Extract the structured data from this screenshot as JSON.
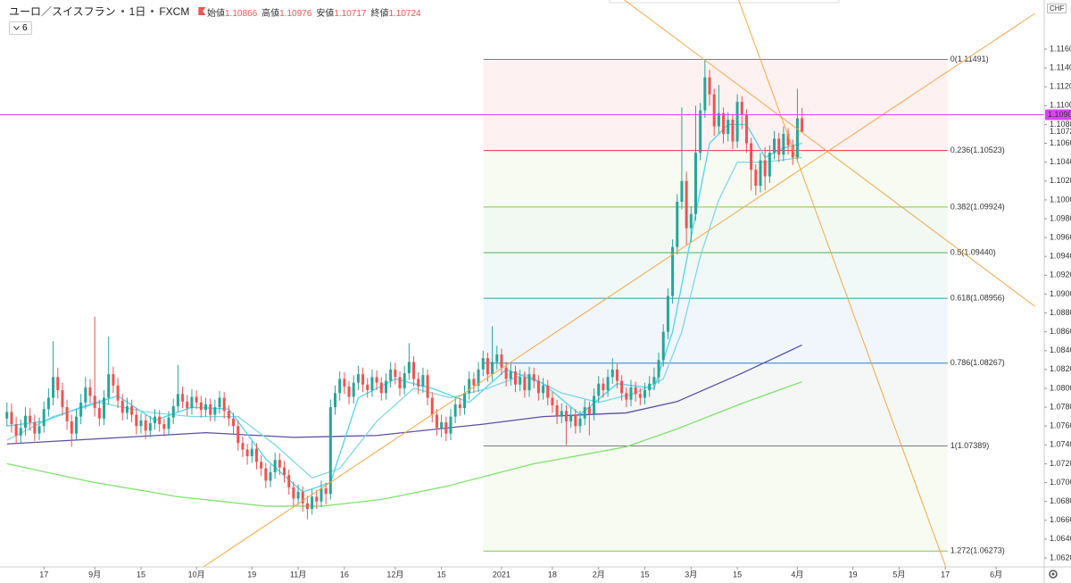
{
  "chart_data": {
    "type": "candlestick",
    "symbol": "ユーロ／スイスフラン",
    "interval": "1日",
    "source": "FXCM",
    "ohlc_labels": [
      "始値",
      "高値",
      "安値",
      "終値"
    ],
    "indicator_count": 6,
    "currency": "CHF",
    "up_color": "#26a69a",
    "down_color": "#ef5350",
    "xlim": [
      -1.5,
      224.4
    ],
    "ylim": [
      1.06105,
      1.12121
    ],
    "xticks": [
      {
        "value": 8,
        "label": "17"
      },
      {
        "value": 19,
        "label": "9月"
      },
      {
        "value": 29,
        "label": "15"
      },
      {
        "value": 41,
        "label": "10月"
      },
      {
        "value": 53,
        "label": "19"
      },
      {
        "value": 63,
        "label": "11月"
      },
      {
        "value": 73,
        "label": "16"
      },
      {
        "value": 84,
        "label": "12月"
      },
      {
        "value": 94,
        "label": "15"
      },
      {
        "value": 107,
        "label": "2021"
      },
      {
        "value": 118,
        "label": "18"
      },
      {
        "value": 128,
        "label": "2月"
      },
      {
        "value": 138,
        "label": "15"
      },
      {
        "value": 148,
        "label": "3月"
      },
      {
        "value": 158,
        "label": "15"
      },
      {
        "value": 171,
        "label": "4月"
      },
      {
        "value": 183,
        "label": "19"
      },
      {
        "value": 193,
        "label": "5月"
      },
      {
        "value": 203,
        "label": "17"
      },
      {
        "value": 214,
        "label": "6月"
      }
    ],
    "yticks": [
      {
        "value": 1.062,
        "label": "1.06200"
      },
      {
        "value": 1.064,
        "label": "1.06400"
      },
      {
        "value": 1.066,
        "label": "1.06600"
      },
      {
        "value": 1.068,
        "label": "1.06800"
      },
      {
        "value": 1.07,
        "label": "1.07000"
      },
      {
        "value": 1.072,
        "label": "1.07200"
      },
      {
        "value": 1.074,
        "label": "1.07400"
      },
      {
        "value": 1.076,
        "label": "1.07600"
      },
      {
        "value": 1.078,
        "label": "1.07800"
      },
      {
        "value": 1.08,
        "label": "1.08000"
      },
      {
        "value": 1.082,
        "label": "1.08200"
      },
      {
        "value": 1.084,
        "label": "1.08400"
      },
      {
        "value": 1.086,
        "label": "1.08600"
      },
      {
        "value": 1.088,
        "label": "1.08800"
      },
      {
        "value": 1.09,
        "label": "1.09000"
      },
      {
        "value": 1.092,
        "label": "1.09200"
      },
      {
        "value": 1.094,
        "label": "1.09400"
      },
      {
        "value": 1.096,
        "label": "1.09600"
      },
      {
        "value": 1.098,
        "label": "1.09800"
      },
      {
        "value": 1.1,
        "label": "1.10000"
      },
      {
        "value": 1.102,
        "label": "1.10200"
      },
      {
        "value": 1.104,
        "label": "1.10400"
      },
      {
        "value": 1.106,
        "label": "1.10600"
      },
      {
        "value": 1.108,
        "label": "1.10800"
      },
      {
        "value": 1.11,
        "label": "1.11000"
      },
      {
        "value": 1.112,
        "label": "1.11200"
      },
      {
        "value": 1.114,
        "label": "1.11400"
      },
      {
        "value": 1.116,
        "label": "1.11600"
      }
    ],
    "open": [
      1.0768,
      1.0775,
      1.0762,
      1.075,
      1.0758,
      1.0771,
      1.0764,
      1.0752,
      1.076,
      1.0778,
      1.079,
      1.0812,
      1.0798,
      1.078,
      1.0765,
      1.0752,
      1.077,
      1.0785,
      1.0801,
      1.0792,
      1.0779,
      1.0768,
      1.079,
      1.0815,
      1.0803,
      1.0787,
      1.0774,
      1.0781,
      1.0772,
      1.076,
      1.0766,
      1.0755,
      1.0763,
      1.077,
      1.0762,
      1.0757,
      1.0769,
      1.0781,
      1.0794,
      1.0786,
      1.0779,
      1.0791,
      1.0785,
      1.0777,
      1.0783,
      1.0772,
      1.078,
      1.079,
      1.0776,
      1.0768,
      1.076,
      1.0742,
      1.0735,
      1.0728,
      1.0736,
      1.0722,
      1.0715,
      1.0702,
      1.0711,
      1.0724,
      1.0716,
      1.0708,
      1.0695,
      1.0683,
      1.069,
      1.0678,
      1.0672,
      1.0685,
      1.068,
      1.0694,
      1.0688,
      1.078,
      1.0795,
      1.081,
      1.0802,
      1.0791,
      1.0806,
      1.0815,
      1.0804,
      1.0798,
      1.0812,
      1.0806,
      1.0795,
      1.0808,
      1.082,
      1.0812,
      1.08,
      1.0816,
      1.0828,
      1.081,
      1.0802,
      1.0814,
      1.079,
      1.0772,
      1.0758,
      1.0764,
      1.0752,
      1.077,
      1.0783,
      1.0779,
      1.0795,
      1.081,
      1.0803,
      1.082,
      1.0832,
      1.0815,
      1.0828,
      1.0836,
      1.0822,
      1.081,
      1.0818,
      1.0804,
      1.0812,
      1.0798,
      1.0815,
      1.0808,
      1.0795,
      1.0803,
      1.079,
      1.0782,
      1.077,
      1.0776,
      1.0765,
      1.0772,
      1.076,
      1.0768,
      1.078,
      1.0773,
      1.0792,
      1.0805,
      1.0798,
      1.0812,
      1.082,
      1.0808,
      1.0795,
      1.0788,
      1.0801,
      1.0794,
      1.079,
      1.0798,
      1.0805,
      1.0812,
      1.083,
      1.086,
      1.0898,
      1.095,
      1.0998,
      1.102,
      1.097,
      1.0985,
      1.105,
      1.1095,
      1.113,
      1.1112,
      1.1078,
      1.1092,
      1.107,
      1.1085,
      1.1062,
      1.1104,
      1.109,
      1.106,
      1.1032,
      1.1015,
      1.1042,
      1.1025,
      1.105,
      1.1065,
      1.1048,
      1.107,
      1.1058,
      1.1045,
      1.10866
    ],
    "high": [
      1.0785,
      1.0784,
      1.077,
      1.0767,
      1.078,
      1.0779,
      1.0772,
      1.0769,
      1.0786,
      1.08,
      1.085,
      1.0822,
      1.0806,
      1.0788,
      1.0772,
      1.0778,
      1.0794,
      1.0812,
      1.081,
      1.0876,
      1.0788,
      1.0798,
      1.0855,
      1.0823,
      1.0811,
      1.0794,
      1.079,
      1.0788,
      1.0779,
      1.0774,
      1.0772,
      1.0771,
      1.0778,
      1.0777,
      1.0768,
      1.0776,
      1.0789,
      1.0825,
      1.0802,
      1.0793,
      1.0799,
      1.0798,
      1.0792,
      1.079,
      1.0789,
      1.0788,
      1.0797,
      1.0796,
      1.0782,
      1.0774,
      1.0766,
      1.0749,
      1.0741,
      1.0744,
      1.0742,
      1.0729,
      1.0721,
      1.0719,
      1.0732,
      1.0731,
      1.0723,
      1.0714,
      1.0701,
      1.0698,
      1.0696,
      1.0686,
      1.0693,
      1.0692,
      1.0702,
      1.07,
      1.0788,
      1.0803,
      1.0818,
      1.0817,
      1.0808,
      1.0814,
      1.0824,
      1.0822,
      1.0811,
      1.082,
      1.0819,
      1.0812,
      1.0816,
      1.0828,
      1.0827,
      1.0818,
      1.0824,
      1.0848,
      1.0834,
      1.0817,
      1.0822,
      1.082,
      1.0796,
      1.0778,
      1.0772,
      1.077,
      1.0778,
      1.0791,
      1.079,
      1.0803,
      1.0818,
      1.0817,
      1.0828,
      1.084,
      1.0838,
      1.0866,
      1.0845,
      1.0842,
      1.0828,
      1.0826,
      1.0824,
      1.082,
      1.0818,
      1.0823,
      1.0822,
      1.0814,
      1.0811,
      1.0809,
      1.0796,
      1.0788,
      1.0784,
      1.0782,
      1.078,
      1.0778,
      1.0776,
      1.0788,
      1.0786,
      1.08,
      1.0813,
      1.0811,
      1.082,
      1.0832,
      1.0826,
      1.0814,
      1.0801,
      1.0809,
      1.0807,
      1.08,
      1.0806,
      1.0813,
      1.0822,
      1.0838,
      1.0868,
      1.0906,
      1.0958,
      1.1006,
      1.1098,
      1.103,
      1.0993,
      1.11,
      1.1103,
      1.1149,
      1.1138,
      1.1118,
      1.1122,
      1.1098,
      1.1093,
      1.1091,
      1.1112,
      1.111,
      1.1096,
      1.1066,
      1.1038,
      1.105,
      1.1056,
      1.1058,
      1.1073,
      1.1071,
      1.1078,
      1.1076,
      1.1064,
      1.1118,
      1.10976
    ],
    "low": [
      1.076,
      1.0753,
      1.0741,
      1.0742,
      1.075,
      1.0755,
      1.0744,
      1.0745,
      1.0753,
      1.077,
      1.0782,
      1.0789,
      1.0771,
      1.0756,
      1.0738,
      1.0745,
      1.0762,
      1.0778,
      1.0784,
      1.077,
      1.076,
      1.0761,
      1.0783,
      1.0795,
      1.0779,
      1.0766,
      1.0767,
      1.0764,
      1.0751,
      1.0752,
      1.0746,
      1.0748,
      1.0756,
      1.0754,
      1.0749,
      1.075,
      1.0762,
      1.0775,
      1.0779,
      1.0771,
      1.0772,
      1.0778,
      1.0769,
      1.077,
      1.0765,
      1.0765,
      1.0773,
      1.0768,
      1.076,
      1.0752,
      1.0734,
      1.0727,
      1.0719,
      1.0721,
      1.0714,
      1.0707,
      1.0694,
      1.0695,
      1.0704,
      1.0708,
      1.07,
      1.0687,
      1.0675,
      1.0676,
      1.0669,
      1.0661,
      1.0666,
      1.0672,
      1.0674,
      1.0677,
      1.0682,
      1.0772,
      1.0787,
      1.0794,
      1.0783,
      1.0784,
      1.0798,
      1.0796,
      1.079,
      1.0791,
      1.0798,
      1.0787,
      1.0788,
      1.0801,
      1.0804,
      1.0792,
      1.0793,
      1.0809,
      1.0802,
      1.0794,
      1.0795,
      1.0782,
      1.0764,
      1.075,
      1.0748,
      1.0744,
      1.0745,
      1.0763,
      1.0771,
      1.0772,
      1.0788,
      1.0795,
      1.0796,
      1.0813,
      1.0807,
      1.0808,
      1.082,
      1.0814,
      1.0802,
      1.0803,
      1.0796,
      1.0797,
      1.079,
      1.0791,
      1.08,
      1.0787,
      1.0788,
      1.0782,
      1.0774,
      1.0762,
      1.0763,
      1.074,
      1.0758,
      1.0752,
      1.0753,
      1.0761,
      1.075,
      1.0766,
      1.0785,
      1.079,
      1.0791,
      1.0805,
      1.08,
      1.0787,
      1.078,
      1.0781,
      1.0786,
      1.0782,
      1.0783,
      1.0791,
      1.0798,
      1.0805,
      1.0823,
      1.0852,
      1.089,
      1.0942,
      1.099,
      1.0952,
      1.0955,
      1.0978,
      1.1042,
      1.1087,
      1.11,
      1.1068,
      1.107,
      1.106,
      1.1062,
      1.1054,
      1.1055,
      1.1075,
      1.105,
      1.101,
      1.1005,
      1.1008,
      1.101,
      1.1018,
      1.1043,
      1.104,
      1.1041,
      1.1048,
      1.1037,
      1.104,
      1.10717
    ],
    "close": [
      1.0775,
      1.0762,
      1.075,
      1.0758,
      1.0771,
      1.0764,
      1.0752,
      1.076,
      1.0778,
      1.079,
      1.0812,
      1.0798,
      1.078,
      1.0765,
      1.0752,
      1.077,
      1.0785,
      1.0801,
      1.0792,
      1.0779,
      1.0768,
      1.079,
      1.0815,
      1.0803,
      1.0787,
      1.0774,
      1.0781,
      1.0772,
      1.076,
      1.0766,
      1.0755,
      1.0763,
      1.077,
      1.0762,
      1.0757,
      1.0769,
      1.0781,
      1.0794,
      1.0786,
      1.0779,
      1.0791,
      1.0785,
      1.0777,
      1.0783,
      1.0772,
      1.078,
      1.079,
      1.0776,
      1.0768,
      1.076,
      1.0742,
      1.0735,
      1.0728,
      1.0736,
      1.0722,
      1.0715,
      1.0702,
      1.0711,
      1.0724,
      1.0716,
      1.0708,
      1.0695,
      1.0683,
      1.069,
      1.0678,
      1.0672,
      1.0685,
      1.068,
      1.0694,
      1.0688,
      1.078,
      1.0795,
      1.081,
      1.0802,
      1.0791,
      1.0806,
      1.0815,
      1.0804,
      1.0798,
      1.0812,
      1.0806,
      1.0795,
      1.0808,
      1.082,
      1.0812,
      1.08,
      1.0816,
      1.0828,
      1.081,
      1.0802,
      1.0814,
      1.079,
      1.0772,
      1.0758,
      1.0764,
      1.0752,
      1.077,
      1.0783,
      1.0779,
      1.0795,
      1.081,
      1.0803,
      1.082,
      1.0832,
      1.0815,
      1.0828,
      1.0836,
      1.0822,
      1.081,
      1.0818,
      1.0804,
      1.0812,
      1.0798,
      1.0815,
      1.0808,
      1.0795,
      1.0803,
      1.079,
      1.0782,
      1.077,
      1.0776,
      1.0765,
      1.0772,
      1.076,
      1.0768,
      1.078,
      1.0773,
      1.0792,
      1.0805,
      1.0798,
      1.0812,
      1.082,
      1.0808,
      1.0795,
      1.0788,
      1.0801,
      1.0794,
      1.079,
      1.0798,
      1.0805,
      1.0812,
      1.083,
      1.086,
      1.0898,
      1.095,
      1.0998,
      1.102,
      1.097,
      1.0985,
      1.105,
      1.1095,
      1.113,
      1.1112,
      1.1078,
      1.1092,
      1.107,
      1.1085,
      1.1062,
      1.1104,
      1.109,
      1.106,
      1.1032,
      1.1015,
      1.1042,
      1.1025,
      1.105,
      1.1065,
      1.1048,
      1.107,
      1.1058,
      1.1045,
      1.10866,
      1.10724
    ],
    "lines": [
      {
        "color": "#7ee36b",
        "x": [
          0,
          18,
          37,
          56,
          68,
          81,
          95,
          114,
          134,
          145,
          159,
          172
        ],
        "values": [
          1.072,
          1.0701,
          1.0685,
          1.0675,
          1.0675,
          1.0682,
          1.0696,
          1.072,
          1.0738,
          1.0757,
          1.0784,
          1.0807
        ]
      },
      {
        "color": "#5c4fa8",
        "x": [
          0,
          18,
          43,
          62,
          80,
          103,
          116,
          134,
          145,
          159,
          172
        ],
        "values": [
          1.0741,
          1.0746,
          1.0753,
          1.0748,
          1.075,
          1.0762,
          1.077,
          1.0774,
          1.0786,
          1.0816,
          1.0846
        ]
      },
      {
        "color": "#7fd8e8",
        "x": [
          0,
          10,
          20,
          30,
          40,
          50,
          58,
          66,
          72,
          80,
          88,
          96,
          104,
          112,
          120,
          128,
          136,
          142,
          146,
          150,
          154,
          158,
          164,
          172
        ],
        "values": [
          1.0745,
          1.077,
          1.0785,
          1.0775,
          1.077,
          1.077,
          1.074,
          1.0705,
          1.0715,
          1.0765,
          1.08,
          1.079,
          1.08,
          1.0815,
          1.0795,
          1.0785,
          1.0795,
          1.081,
          1.086,
          1.094,
          1.1,
          1.104,
          1.104,
          1.1045
        ]
      },
      {
        "color": "#4fd6ef",
        "x": [
          0,
          8,
          16,
          24,
          32,
          40,
          48,
          56,
          64,
          70,
          76,
          84,
          92,
          100,
          108,
          116,
          124,
          132,
          140,
          144,
          148,
          152,
          156,
          160,
          164,
          168,
          172
        ],
        "values": [
          1.076,
          1.0765,
          1.078,
          1.0792,
          1.0766,
          1.078,
          1.0778,
          1.0725,
          1.069,
          1.07,
          1.079,
          1.081,
          1.08,
          1.0785,
          1.082,
          1.0805,
          1.0772,
          1.0805,
          1.08,
          1.086,
          1.096,
          1.106,
          1.108,
          1.108,
          1.1045,
          1.1055,
          1.106
        ]
      }
    ],
    "trend_lines": [
      {
        "color": "#f5a742",
        "x": [
          42.5,
          222.4
        ],
        "values": [
          1.06106,
          1.11979
        ]
      },
      {
        "color": "#f5a742",
        "x": [
          133.6,
          222.4
        ],
        "values": [
          1.1212,
          1.0887
        ]
      },
      {
        "color": "#f5a742",
        "x": [
          158.3,
          203.1
        ],
        "values": [
          1.1212,
          1.06106
        ]
      }
    ],
    "fib": {
      "x": [
        103.1,
        203.5
      ],
      "levels": [
        {
          "label": "0(1.11491)",
          "price": 1.11491,
          "color": "#787b86"
        },
        {
          "label": "0.236(1.10523)",
          "price": 1.10523,
          "color": "#f23645"
        },
        {
          "label": "0.382(1.09924)",
          "price": 1.09924,
          "color": "#8bc34a"
        },
        {
          "label": "0.5(1.09440)",
          "price": 1.0944,
          "color": "#4caf50"
        },
        {
          "label": "0.618(1.08956)",
          "price": 1.08956,
          "color": "#26a69a"
        },
        {
          "label": "0.786(1.08267)",
          "price": 1.08267,
          "color": "#2a7fc4"
        },
        {
          "label": "1(1.07389)",
          "price": 1.07389,
          "color": "#787b86"
        },
        {
          "label": "1.272(1.06273)",
          "price": 1.06273,
          "color": "#8bc34a"
        }
      ]
    },
    "last_price": {
      "value": 1.10904,
      "color": "#e040fb"
    }
  }
}
